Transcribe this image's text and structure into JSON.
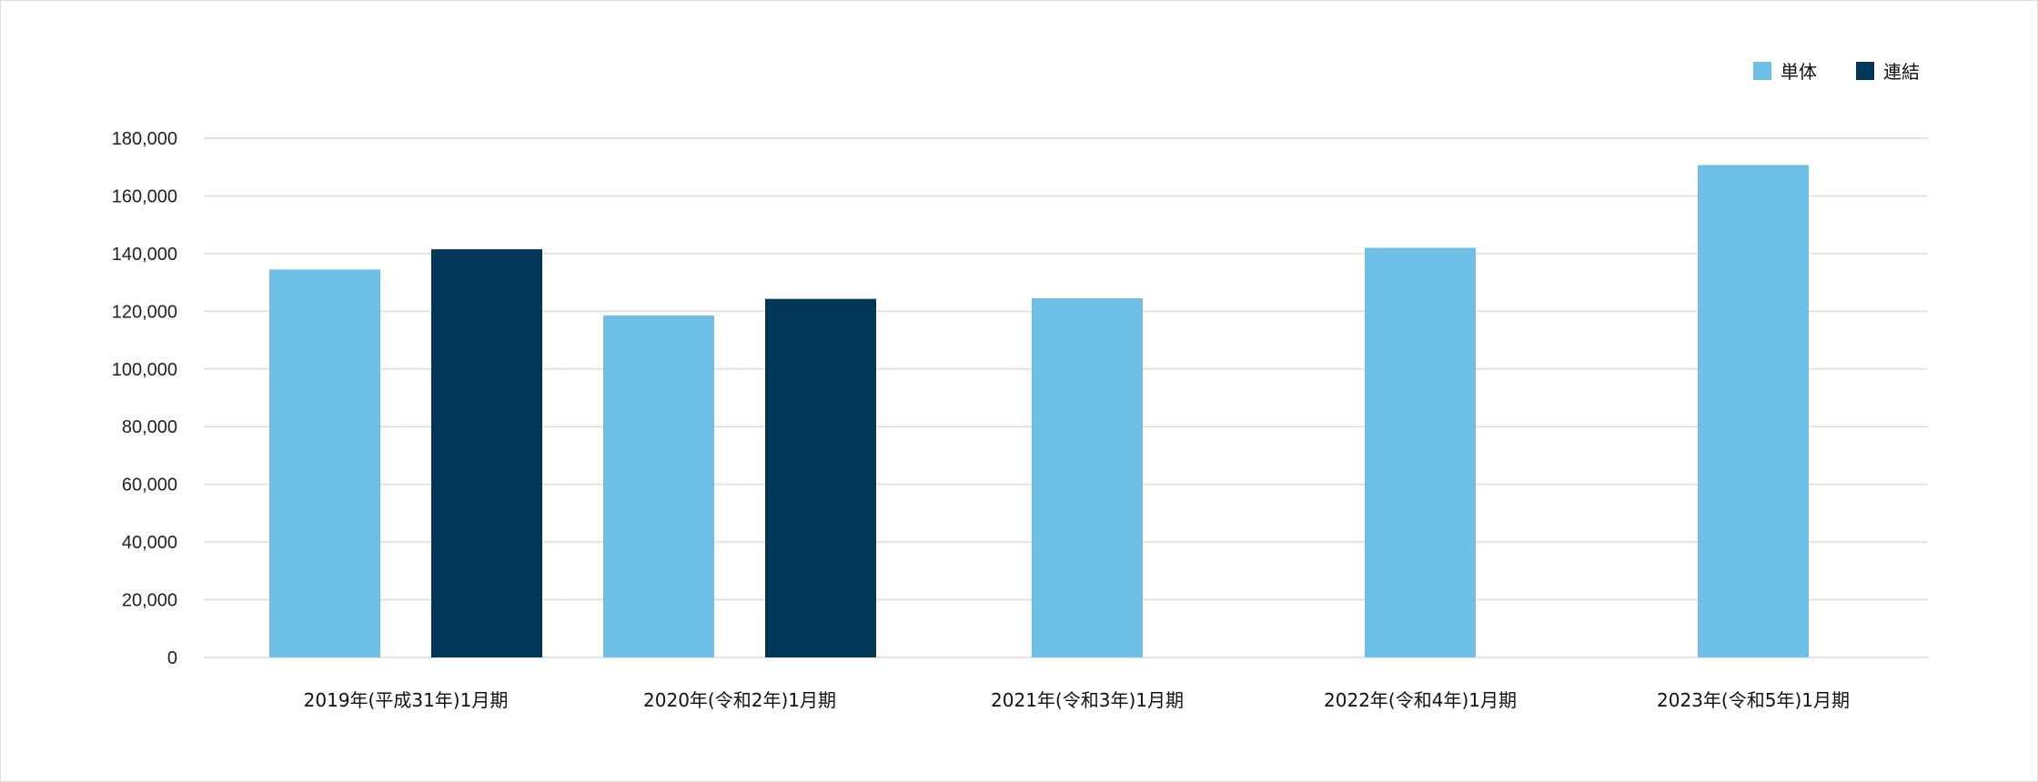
{
  "chart_data": {
    "type": "bar",
    "categories": [
      "2019年(平成31年)1月期",
      "2020年(令和2年)1月期",
      "2021年(令和3年)1月期",
      "2022年(令和4年)1月期",
      "2023年(令和5年)1月期"
    ],
    "series": [
      {
        "name": "単体",
        "color": "#6ebfe6",
        "values": [
          134500,
          118500,
          124500,
          142000,
          170700
        ]
      },
      {
        "name": "連結",
        "color": "#003759",
        "values": [
          141500,
          124300,
          null,
          null,
          null
        ]
      }
    ],
    "yticks": [
      "0",
      "20,000",
      "40,000",
      "60,000",
      "80,000",
      "100,000",
      "120,000",
      "140,000",
      "160,000",
      "180,000"
    ],
    "ylim": [
      0,
      180000
    ],
    "grid": true,
    "legend_position": "top-right"
  }
}
